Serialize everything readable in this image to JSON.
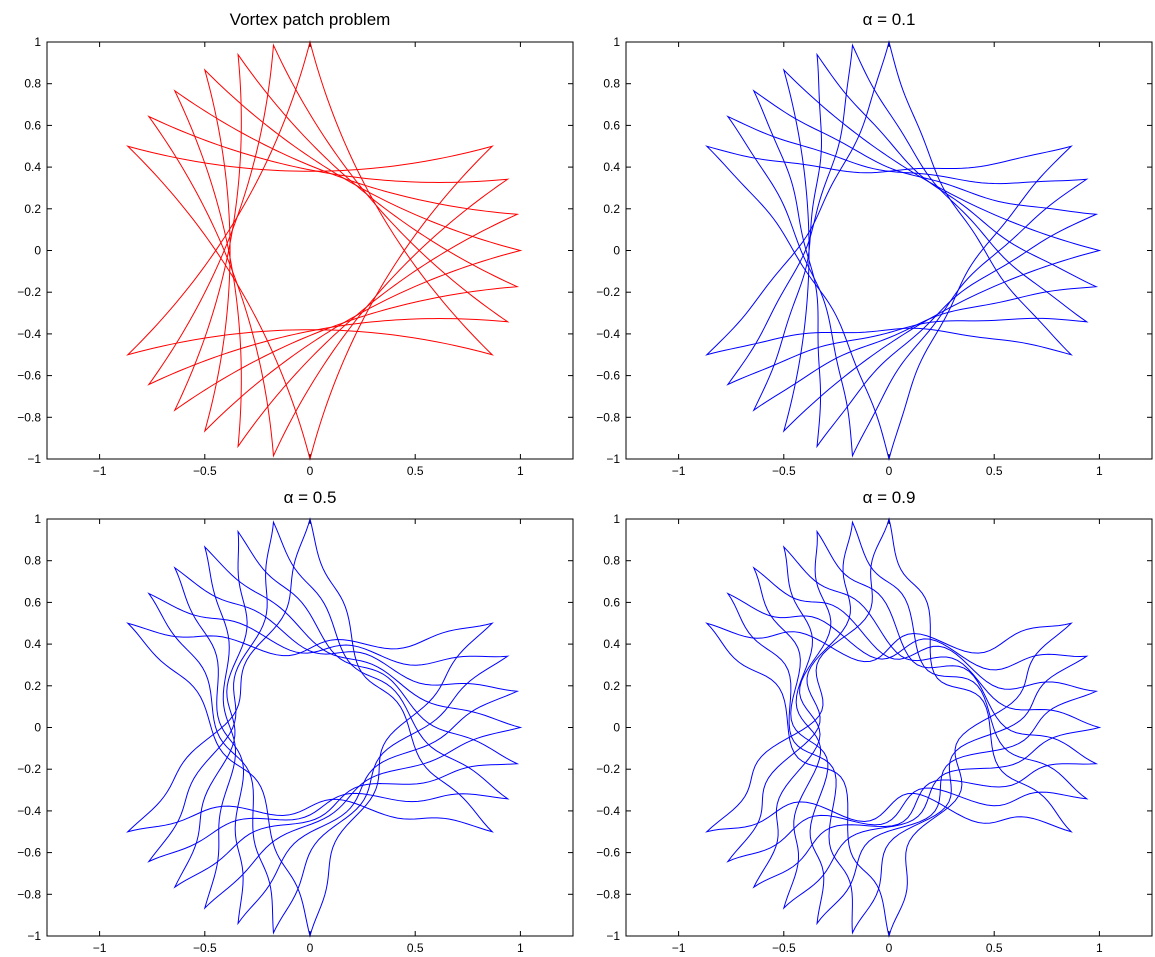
{
  "chart_data": [
    {
      "type": "line",
      "title": "Vortex patch problem",
      "xlim": [
        -1.25,
        1.25
      ],
      "ylim": [
        -1,
        1
      ],
      "xticks": [
        -1,
        -0.5,
        0,
        0.5,
        1
      ],
      "xtick_labels": [
        "−1",
        "−0.5",
        "0",
        "0.5",
        "1"
      ],
      "yticks": [
        -1,
        -0.8,
        -0.6,
        -0.4,
        -0.2,
        0,
        0.2,
        0.4,
        0.6,
        0.8,
        1
      ],
      "ytick_labels": [
        "−1",
        "−0.8",
        "−0.6",
        "−0.4",
        "−0.2",
        "0",
        "0.2",
        "0.4",
        "0.6",
        "0.8",
        "1"
      ],
      "grid": false,
      "color": "#ff0000",
      "series": [
        {
          "cusp_angles_deg": [
            0,
            120,
            240
          ],
          "note_k": 0.1,
          "wiggle": 0.0
        },
        {
          "cusp_angles_deg": [
            10,
            130,
            250
          ],
          "note_k": 0.1,
          "wiggle": 0.0
        },
        {
          "cusp_angles_deg": [
            20,
            140,
            260
          ],
          "note_k": 0.1,
          "wiggle": 0.0
        },
        {
          "cusp_angles_deg": [
            30,
            150,
            270
          ],
          "note_k": 0.1,
          "wiggle": 0.0
        },
        {
          "cusp_angles_deg": [
            -10,
            110,
            230
          ],
          "note_k": 0.1,
          "wiggle": 0.0
        },
        {
          "cusp_angles_deg": [
            -20,
            100,
            220
          ],
          "note_k": 0.1,
          "wiggle": 0.0
        },
        {
          "cusp_angles_deg": [
            -30,
            90,
            210
          ],
          "note_k": 0.1,
          "wiggle": 0.0
        }
      ]
    },
    {
      "type": "line",
      "title": "α = 0.1",
      "xlim": [
        -1.25,
        1.25
      ],
      "ylim": [
        -1,
        1
      ],
      "xticks": [
        -1,
        -0.5,
        0,
        0.5,
        1
      ],
      "xtick_labels": [
        "−1",
        "−0.5",
        "0",
        "0.5",
        "1"
      ],
      "yticks": [
        -1,
        -0.8,
        -0.6,
        -0.4,
        -0.2,
        0,
        0.2,
        0.4,
        0.6,
        0.8,
        1
      ],
      "ytick_labels": [
        "−1",
        "−0.8",
        "−0.6",
        "−0.4",
        "−0.2",
        "0",
        "0.2",
        "0.4",
        "0.6",
        "0.8",
        "1"
      ],
      "grid": false,
      "color": "#0000ff",
      "series": [
        {
          "cusp_angles_deg": [
            0,
            120,
            240
          ],
          "note_k": 0.1,
          "wiggle": 0.0
        },
        {
          "cusp_angles_deg": [
            10,
            130,
            250
          ],
          "note_k": 0.1,
          "wiggle": 0.01
        },
        {
          "cusp_angles_deg": [
            20,
            140,
            260
          ],
          "note_k": 0.1,
          "wiggle": 0.01
        },
        {
          "cusp_angles_deg": [
            30,
            150,
            270
          ],
          "note_k": 0.1,
          "wiggle": 0.01
        },
        {
          "cusp_angles_deg": [
            -10,
            110,
            230
          ],
          "note_k": 0.1,
          "wiggle": 0.01
        },
        {
          "cusp_angles_deg": [
            -20,
            100,
            220
          ],
          "note_k": 0.1,
          "wiggle": 0.01
        },
        {
          "cusp_angles_deg": [
            -30,
            90,
            210
          ],
          "note_k": 0.1,
          "wiggle": 0.01
        }
      ]
    },
    {
      "type": "line",
      "title": "α = 0.5",
      "xlim": [
        -1.25,
        1.25
      ],
      "ylim": [
        -1,
        1
      ],
      "xticks": [
        -1,
        -0.5,
        0,
        0.5,
        1
      ],
      "xtick_labels": [
        "−1",
        "−0.5",
        "0",
        "0.5",
        "1"
      ],
      "yticks": [
        -1,
        -0.8,
        -0.6,
        -0.4,
        -0.2,
        0,
        0.2,
        0.4,
        0.6,
        0.8,
        1
      ],
      "ytick_labels": [
        "−1",
        "−0.8",
        "−0.6",
        "−0.4",
        "−0.2",
        "0",
        "0.2",
        "0.4",
        "0.6",
        "0.8",
        "1"
      ],
      "grid": false,
      "color": "#0000ff",
      "series": [
        {
          "cusp_angles_deg": [
            0,
            120,
            240
          ],
          "note_k": 0.1,
          "wiggle": 0.03
        },
        {
          "cusp_angles_deg": [
            10,
            130,
            250
          ],
          "note_k": 0.1,
          "wiggle": 0.04
        },
        {
          "cusp_angles_deg": [
            20,
            140,
            260
          ],
          "note_k": 0.1,
          "wiggle": 0.04
        },
        {
          "cusp_angles_deg": [
            30,
            150,
            270
          ],
          "note_k": 0.1,
          "wiggle": 0.04
        },
        {
          "cusp_angles_deg": [
            -10,
            110,
            230
          ],
          "note_k": 0.1,
          "wiggle": 0.04
        },
        {
          "cusp_angles_deg": [
            -20,
            100,
            220
          ],
          "note_k": 0.1,
          "wiggle": 0.04
        },
        {
          "cusp_angles_deg": [
            -30,
            90,
            210
          ],
          "note_k": 0.1,
          "wiggle": 0.04
        }
      ]
    },
    {
      "type": "line",
      "title": "α = 0.9",
      "xlim": [
        -1.25,
        1.25
      ],
      "ylim": [
        -1,
        1
      ],
      "xticks": [
        -1,
        -0.5,
        0,
        0.5,
        1
      ],
      "xtick_labels": [
        "−1",
        "−0.5",
        "0",
        "0.5",
        "1"
      ],
      "yticks": [
        -1,
        -0.8,
        -0.6,
        -0.4,
        -0.2,
        0,
        0.2,
        0.4,
        0.6,
        0.8,
        1
      ],
      "ytick_labels": [
        "−1",
        "−0.8",
        "−0.6",
        "−0.4",
        "−0.2",
        "0",
        "0.2",
        "0.4",
        "0.6",
        "0.8",
        "1"
      ],
      "grid": false,
      "color": "#0000ff",
      "series": [
        {
          "cusp_angles_deg": [
            0,
            120,
            240
          ],
          "note_k": 0.1,
          "wiggle": 0.06
        },
        {
          "cusp_angles_deg": [
            10,
            130,
            250
          ],
          "note_k": 0.1,
          "wiggle": 0.07
        },
        {
          "cusp_angles_deg": [
            20,
            140,
            260
          ],
          "note_k": 0.1,
          "wiggle": 0.07
        },
        {
          "cusp_angles_deg": [
            30,
            150,
            270
          ],
          "note_k": 0.1,
          "wiggle": 0.07
        },
        {
          "cusp_angles_deg": [
            -10,
            110,
            230
          ],
          "note_k": 0.1,
          "wiggle": 0.07
        },
        {
          "cusp_angles_deg": [
            -20,
            100,
            220
          ],
          "note_k": 0.1,
          "wiggle": 0.07
        },
        {
          "cusp_angles_deg": [
            -30,
            90,
            210
          ],
          "note_k": 0.1,
          "wiggle": 0.07
        }
      ]
    }
  ]
}
